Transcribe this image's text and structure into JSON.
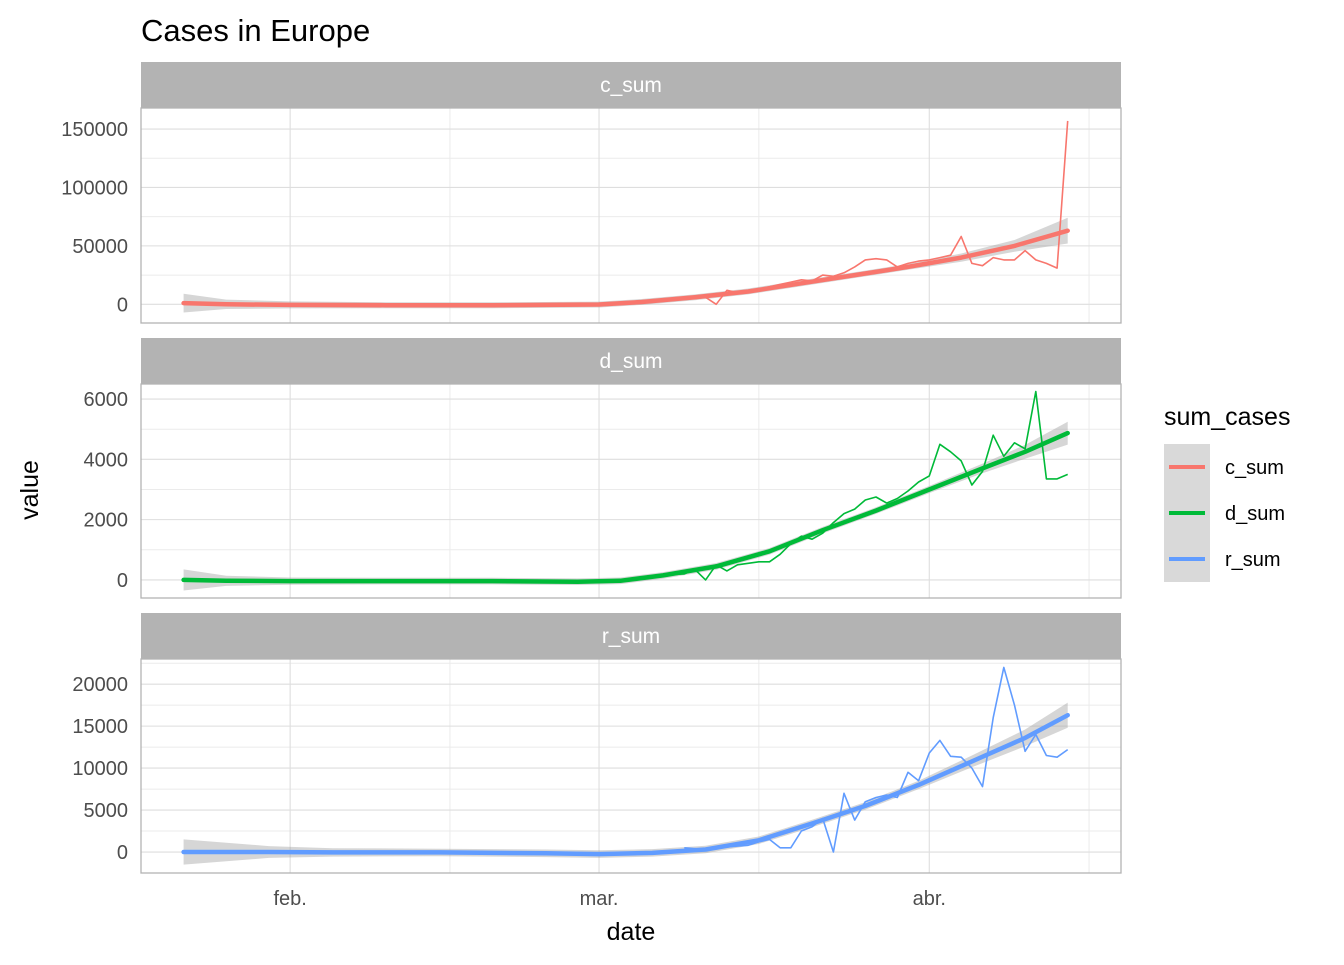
{
  "chart_data": {
    "type": "line",
    "title": "Cases in Europe",
    "xlabel": "date",
    "ylabel": "value",
    "x_ticks": [
      "feb.",
      "mar.",
      "abr."
    ],
    "x_range": [
      "2020-01-22",
      "2020-04-14"
    ],
    "grid": true,
    "legend": {
      "title": "sum_cases",
      "placement": "right",
      "entries": [
        "c_sum",
        "d_sum",
        "r_sum"
      ]
    },
    "panels": [
      {
        "name": "c_sum",
        "color": "#F8766D",
        "y_ticks": [
          0,
          50000,
          100000,
          150000
        ],
        "ylim": [
          -16000,
          168000
        ],
        "series": [
          {
            "x": "2020-03-10",
            "y": 5000
          },
          {
            "x": "2020-03-11",
            "y": 6000
          },
          {
            "x": "2020-03-12",
            "y": 0
          },
          {
            "x": "2020-03-13",
            "y": 12000
          },
          {
            "x": "2020-03-14",
            "y": 10000
          },
          {
            "x": "2020-03-15",
            "y": 11000
          },
          {
            "x": "2020-03-16",
            "y": 13000
          },
          {
            "x": "2020-03-17",
            "y": 15000
          },
          {
            "x": "2020-03-18",
            "y": 17000
          },
          {
            "x": "2020-03-19",
            "y": 19000
          },
          {
            "x": "2020-03-20",
            "y": 21000
          },
          {
            "x": "2020-03-21",
            "y": 20000
          },
          {
            "x": "2020-03-22",
            "y": 25000
          },
          {
            "x": "2020-03-23",
            "y": 24000
          },
          {
            "x": "2020-03-24",
            "y": 27000
          },
          {
            "x": "2020-03-25",
            "y": 32000
          },
          {
            "x": "2020-03-26",
            "y": 38000
          },
          {
            "x": "2020-03-27",
            "y": 39000
          },
          {
            "x": "2020-03-28",
            "y": 38000
          },
          {
            "x": "2020-03-29",
            "y": 32000
          },
          {
            "x": "2020-03-30",
            "y": 35000
          },
          {
            "x": "2020-03-31",
            "y": 37000
          },
          {
            "x": "2020-04-01",
            "y": 38000
          },
          {
            "x": "2020-04-02",
            "y": 40000
          },
          {
            "x": "2020-04-03",
            "y": 42000
          },
          {
            "x": "2020-04-04",
            "y": 58000
          },
          {
            "x": "2020-04-05",
            "y": 35000
          },
          {
            "x": "2020-04-06",
            "y": 33000
          },
          {
            "x": "2020-04-07",
            "y": 40000
          },
          {
            "x": "2020-04-08",
            "y": 38000
          },
          {
            "x": "2020-04-09",
            "y": 38000
          },
          {
            "x": "2020-04-10",
            "y": 46000
          },
          {
            "x": "2020-04-11",
            "y": 38000
          },
          {
            "x": "2020-04-12",
            "y": 35000
          },
          {
            "x": "2020-04-13",
            "y": 31000
          },
          {
            "x": "2020-04-14",
            "y": 157000
          }
        ],
        "smooth": [
          {
            "x": "2020-01-22",
            "y": 1000
          },
          {
            "x": "2020-01-26",
            "y": 0
          },
          {
            "x": "2020-02-01",
            "y": -500
          },
          {
            "x": "2020-02-10",
            "y": -800
          },
          {
            "x": "2020-02-20",
            "y": -800
          },
          {
            "x": "2020-03-01",
            "y": -200
          },
          {
            "x": "2020-03-05",
            "y": 2000
          },
          {
            "x": "2020-03-10",
            "y": 6000
          },
          {
            "x": "2020-03-15",
            "y": 11000
          },
          {
            "x": "2020-03-20",
            "y": 18000
          },
          {
            "x": "2020-03-25",
            "y": 25000
          },
          {
            "x": "2020-03-30",
            "y": 32000
          },
          {
            "x": "2020-04-04",
            "y": 40000
          },
          {
            "x": "2020-04-09",
            "y": 50000
          },
          {
            "x": "2020-04-14",
            "y": 63000
          }
        ],
        "band_halfwidth": [
          8000,
          4000,
          3000,
          2500,
          2500,
          2500,
          2500,
          2500,
          2500,
          2500,
          2500,
          2500,
          3500,
          5000,
          11000
        ]
      },
      {
        "name": "d_sum",
        "color": "#00BA38",
        "y_ticks": [
          0,
          2000,
          4000,
          6000
        ],
        "ylim": [
          -600,
          6500
        ],
        "series": [
          {
            "x": "2020-03-08",
            "y": 180
          },
          {
            "x": "2020-03-09",
            "y": 200
          },
          {
            "x": "2020-03-10",
            "y": 350
          },
          {
            "x": "2020-03-11",
            "y": 0
          },
          {
            "x": "2020-03-12",
            "y": 500
          },
          {
            "x": "2020-03-13",
            "y": 300
          },
          {
            "x": "2020-03-14",
            "y": 500
          },
          {
            "x": "2020-03-15",
            "y": 550
          },
          {
            "x": "2020-03-16",
            "y": 600
          },
          {
            "x": "2020-03-17",
            "y": 600
          },
          {
            "x": "2020-03-18",
            "y": 850
          },
          {
            "x": "2020-03-19",
            "y": 1200
          },
          {
            "x": "2020-03-20",
            "y": 1450
          },
          {
            "x": "2020-03-21",
            "y": 1350
          },
          {
            "x": "2020-03-22",
            "y": 1550
          },
          {
            "x": "2020-03-23",
            "y": 1900
          },
          {
            "x": "2020-03-24",
            "y": 2200
          },
          {
            "x": "2020-03-25",
            "y": 2350
          },
          {
            "x": "2020-03-26",
            "y": 2650
          },
          {
            "x": "2020-03-27",
            "y": 2750
          },
          {
            "x": "2020-03-28",
            "y": 2550
          },
          {
            "x": "2020-03-29",
            "y": 2700
          },
          {
            "x": "2020-03-30",
            "y": 2950
          },
          {
            "x": "2020-03-31",
            "y": 3250
          },
          {
            "x": "2020-04-01",
            "y": 3450
          },
          {
            "x": "2020-04-02",
            "y": 4500
          },
          {
            "x": "2020-04-03",
            "y": 4250
          },
          {
            "x": "2020-04-04",
            "y": 3950
          },
          {
            "x": "2020-04-05",
            "y": 3150
          },
          {
            "x": "2020-04-06",
            "y": 3600
          },
          {
            "x": "2020-04-07",
            "y": 4800
          },
          {
            "x": "2020-04-08",
            "y": 4100
          },
          {
            "x": "2020-04-09",
            "y": 4550
          },
          {
            "x": "2020-04-10",
            "y": 4350
          },
          {
            "x": "2020-04-11",
            "y": 6250
          },
          {
            "x": "2020-04-12",
            "y": 3350
          },
          {
            "x": "2020-04-13",
            "y": 3350
          },
          {
            "x": "2020-04-14",
            "y": 3500
          }
        ],
        "smooth": [
          {
            "x": "2020-01-22",
            "y": 0
          },
          {
            "x": "2020-01-26",
            "y": -30
          },
          {
            "x": "2020-02-01",
            "y": -40
          },
          {
            "x": "2020-02-10",
            "y": -40
          },
          {
            "x": "2020-02-20",
            "y": -40
          },
          {
            "x": "2020-02-28",
            "y": -60
          },
          {
            "x": "2020-03-03",
            "y": -30
          },
          {
            "x": "2020-03-07",
            "y": 150
          },
          {
            "x": "2020-03-12",
            "y": 450
          },
          {
            "x": "2020-03-17",
            "y": 950
          },
          {
            "x": "2020-03-22",
            "y": 1650
          },
          {
            "x": "2020-03-27",
            "y": 2300
          },
          {
            "x": "2020-04-01",
            "y": 3000
          },
          {
            "x": "2020-04-06",
            "y": 3700
          },
          {
            "x": "2020-04-10",
            "y": 4250
          },
          {
            "x": "2020-04-14",
            "y": 4870
          }
        ],
        "band_halfwidth": [
          350,
          170,
          120,
          110,
          110,
          110,
          110,
          110,
          110,
          110,
          110,
          110,
          120,
          160,
          230,
          380
        ]
      },
      {
        "name": "r_sum",
        "color": "#619CFF",
        "y_ticks": [
          0,
          5000,
          10000,
          15000,
          20000
        ],
        "ylim": [
          -2500,
          23000
        ],
        "series": [
          {
            "x": "2020-03-09",
            "y": 500
          },
          {
            "x": "2020-03-10",
            "y": 400
          },
          {
            "x": "2020-03-11",
            "y": 300
          },
          {
            "x": "2020-03-12",
            "y": 500
          },
          {
            "x": "2020-03-13",
            "y": 600
          },
          {
            "x": "2020-03-14",
            "y": 700
          },
          {
            "x": "2020-03-15",
            "y": 800
          },
          {
            "x": "2020-03-16",
            "y": 1200
          },
          {
            "x": "2020-03-17",
            "y": 1500
          },
          {
            "x": "2020-03-18",
            "y": 500
          },
          {
            "x": "2020-03-19",
            "y": 500
          },
          {
            "x": "2020-03-20",
            "y": 2500
          },
          {
            "x": "2020-03-21",
            "y": 3000
          },
          {
            "x": "2020-03-22",
            "y": 4000
          },
          {
            "x": "2020-03-23",
            "y": 0
          },
          {
            "x": "2020-03-24",
            "y": 7000
          },
          {
            "x": "2020-03-25",
            "y": 3800
          },
          {
            "x": "2020-03-26",
            "y": 6000
          },
          {
            "x": "2020-03-27",
            "y": 6500
          },
          {
            "x": "2020-03-28",
            "y": 6800
          },
          {
            "x": "2020-03-29",
            "y": 6500
          },
          {
            "x": "2020-03-30",
            "y": 9500
          },
          {
            "x": "2020-03-31",
            "y": 8500
          },
          {
            "x": "2020-04-01",
            "y": 11800
          },
          {
            "x": "2020-04-02",
            "y": 13300
          },
          {
            "x": "2020-04-03",
            "y": 11400
          },
          {
            "x": "2020-04-04",
            "y": 11300
          },
          {
            "x": "2020-04-05",
            "y": 10000
          },
          {
            "x": "2020-04-06",
            "y": 7800
          },
          {
            "x": "2020-04-07",
            "y": 16000
          },
          {
            "x": "2020-04-08",
            "y": 22000
          },
          {
            "x": "2020-04-09",
            "y": 17500
          },
          {
            "x": "2020-04-10",
            "y": 12000
          },
          {
            "x": "2020-04-11",
            "y": 14000
          },
          {
            "x": "2020-04-12",
            "y": 11500
          },
          {
            "x": "2020-04-13",
            "y": 11300
          },
          {
            "x": "2020-04-14",
            "y": 12200
          }
        ],
        "smooth": [
          {
            "x": "2020-01-22",
            "y": 0
          },
          {
            "x": "2020-01-30",
            "y": 0
          },
          {
            "x": "2020-02-05",
            "y": -50
          },
          {
            "x": "2020-02-15",
            "y": -50
          },
          {
            "x": "2020-02-25",
            "y": -150
          },
          {
            "x": "2020-03-01",
            "y": -250
          },
          {
            "x": "2020-03-06",
            "y": -100
          },
          {
            "x": "2020-03-11",
            "y": 300
          },
          {
            "x": "2020-03-16",
            "y": 1400
          },
          {
            "x": "2020-03-21",
            "y": 3400
          },
          {
            "x": "2020-03-26",
            "y": 5500
          },
          {
            "x": "2020-03-31",
            "y": 8000
          },
          {
            "x": "2020-04-05",
            "y": 10800
          },
          {
            "x": "2020-04-10",
            "y": 13600
          },
          {
            "x": "2020-04-14",
            "y": 16300
          }
        ],
        "band_halfwidth": [
          1500,
          700,
          500,
          450,
          450,
          450,
          450,
          450,
          450,
          450,
          450,
          500,
          700,
          1000,
          1500
        ]
      }
    ]
  }
}
